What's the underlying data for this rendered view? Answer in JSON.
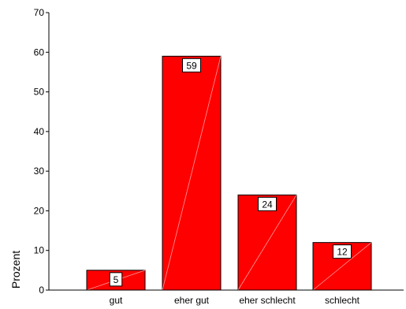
{
  "chart_data": {
    "type": "bar",
    "categories": [
      "gut",
      "eher gut",
      "eher schlecht",
      "schlecht"
    ],
    "values": [
      5,
      59,
      24,
      12
    ],
    "data_labels": [
      "5",
      "59",
      "24",
      "12"
    ],
    "title": "",
    "xlabel": "",
    "ylabel": "Prozent",
    "ylim": [
      0,
      70
    ],
    "yticks": [
      0,
      10,
      20,
      30,
      40,
      50,
      60,
      70
    ],
    "ytick_labels": [
      "0",
      "10",
      "20",
      "30",
      "40",
      "50",
      "60",
      "70"
    ],
    "grid": false,
    "legend": "none",
    "bar_color": "#ff0000"
  }
}
